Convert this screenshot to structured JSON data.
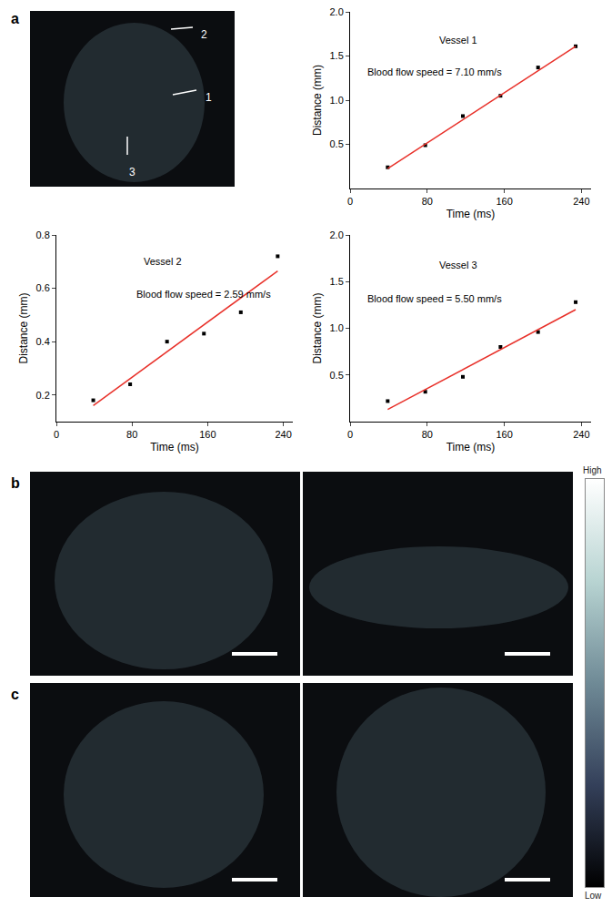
{
  "panels": {
    "labels": [
      "a",
      "b",
      "c"
    ],
    "vessel_labels": [
      "1",
      "2",
      "3"
    ],
    "colorbar": {
      "high": "High",
      "low": "Low"
    }
  },
  "chart_data": [
    {
      "type": "scatter",
      "title": "Vessel 1",
      "annotation": "Blood flow speed = 7.10 mm/s",
      "x_label": "Time (ms)",
      "y_label": "Distance (mm)",
      "xlim": [
        0,
        250
      ],
      "xticks": [
        0,
        80,
        160,
        240
      ],
      "ylim": [
        0,
        2
      ],
      "yticks": [
        0.5,
        {
          "value": 1,
          "label": "1.0"
        },
        1.5,
        {
          "value": 2,
          "label": "2.0"
        }
      ],
      "series": [
        {
          "type": "scatter",
          "marker": "square",
          "color": "#000000",
          "x": [
            39,
            78,
            117,
            156,
            195,
            234
          ],
          "values": [
            0.24,
            0.49,
            0.82,
            1.05,
            1.37,
            1.61
          ]
        },
        {
          "type": "line",
          "line_style": "solid",
          "color": "#e8312a",
          "x": [
            39,
            234
          ],
          "values": [
            0.225,
            1.61
          ]
        }
      ]
    },
    {
      "type": "scatter",
      "title": "Vessel 2",
      "annotation": "Blood flow speed = 2.59 mm/s",
      "x_label": "Time (ms)",
      "y_label": "Distance (mm)",
      "xlim": [
        0,
        250
      ],
      "xticks": [
        0,
        80,
        160,
        240
      ],
      "ylim": [
        0.1,
        0.8
      ],
      "yticks": [
        0.2,
        0.4,
        0.6,
        0.8
      ],
      "series": [
        {
          "type": "scatter",
          "marker": "square",
          "color": "#000000",
          "x": [
            39,
            78,
            117,
            156,
            195,
            234
          ],
          "values": [
            0.18,
            0.24,
            0.4,
            0.43,
            0.51,
            0.72
          ]
        },
        {
          "type": "line",
          "line_style": "solid",
          "color": "#e8312a",
          "x": [
            39,
            234
          ],
          "values": [
            0.16,
            0.665
          ]
        }
      ]
    },
    {
      "type": "scatter",
      "title": "Vessel 3",
      "annotation": "Blood flow speed = 5.50 mm/s",
      "x_label": "Time (ms)",
      "y_label": "Distance (mm)",
      "xlim": [
        0,
        250
      ],
      "xticks": [
        0,
        80,
        160,
        240
      ],
      "ylim": [
        0,
        2
      ],
      "yticks": [
        0.5,
        {
          "value": 1,
          "label": "1.0"
        },
        1.5,
        {
          "value": 2,
          "label": "2.0"
        }
      ],
      "series": [
        {
          "type": "scatter",
          "marker": "square",
          "color": "#000000",
          "x": [
            39,
            78,
            117,
            156,
            195,
            234
          ],
          "values": [
            0.22,
            0.32,
            0.48,
            0.8,
            0.96,
            1.28
          ]
        },
        {
          "type": "line",
          "line_style": "solid",
          "color": "#e8312a",
          "x": [
            39,
            234
          ],
          "values": [
            0.13,
            1.2
          ]
        }
      ]
    }
  ]
}
